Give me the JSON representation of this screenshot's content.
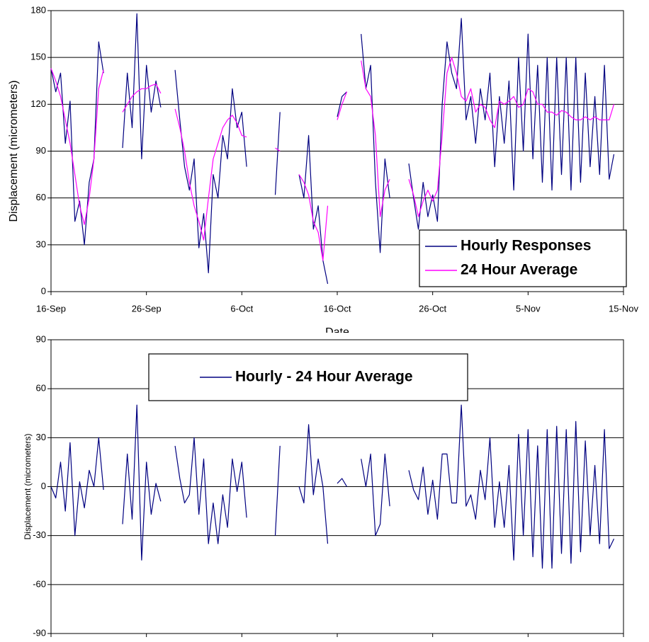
{
  "chart_data": [
    {
      "type": "line",
      "xlabel": "Date",
      "ylabel": "Displacement (micrometers)",
      "legend": "lower right",
      "grid": true,
      "xlim": [
        0,
        60
      ],
      "xticks": [
        {
          "value": 0,
          "label": "16-Sep"
        },
        {
          "value": 10,
          "label": "26-Sep"
        },
        {
          "value": 20,
          "label": "6-Oct"
        },
        {
          "value": 30,
          "label": "16-Oct"
        },
        {
          "value": 40,
          "label": "26-Oct"
        },
        {
          "value": 50,
          "label": "5-Nov"
        },
        {
          "value": 60,
          "label": "15-Nov"
        }
      ],
      "ylim": [
        0,
        180
      ],
      "yticks": [
        0,
        30,
        60,
        90,
        120,
        150,
        180
      ],
      "x": [
        0,
        0.5,
        1,
        1.5,
        2,
        2.5,
        3,
        3.5,
        4,
        4.5,
        5,
        5.5,
        6,
        6.5,
        7,
        7.5,
        8,
        8.5,
        9,
        9.5,
        10,
        10.5,
        11,
        11.5,
        12,
        12.5,
        13,
        13.5,
        14,
        14.5,
        15,
        15.5,
        16,
        16.5,
        17,
        17.5,
        18,
        18.5,
        19,
        19.5,
        20,
        20.5,
        21,
        21.5,
        22,
        22.5,
        23,
        23.5,
        24,
        24.5,
        25,
        25.5,
        26,
        26.5,
        27,
        27.5,
        28,
        28.5,
        29,
        29.5,
        30,
        30.5,
        31,
        31.5,
        32,
        32.5,
        33,
        33.5,
        34,
        34.5,
        35,
        35.5,
        36,
        36.5,
        37,
        37.5,
        38,
        38.5,
        39,
        39.5,
        40,
        40.5,
        41,
        41.5,
        42,
        42.5,
        43,
        43.5,
        44,
        44.5,
        45,
        45.5,
        46,
        46.5,
        47,
        47.5,
        48,
        48.5,
        49,
        49.5,
        50,
        50.5,
        51,
        51.5,
        52,
        52.5,
        53,
        53.5,
        54,
        54.5,
        55,
        55.5,
        56,
        56.5,
        57,
        57.5,
        58,
        58.5,
        59
      ],
      "series": [
        {
          "name": "Hourly Responses",
          "color": "#000080",
          "values": [
            143,
            128,
            140,
            95,
            122,
            45,
            58,
            30,
            70,
            85,
            160,
            140,
            null,
            null,
            null,
            92,
            140,
            105,
            178,
            85,
            145,
            115,
            135,
            118,
            null,
            null,
            142,
            110,
            80,
            65,
            85,
            28,
            50,
            12,
            75,
            60,
            100,
            85,
            130,
            105,
            115,
            80,
            null,
            null,
            null,
            null,
            null,
            62,
            115,
            null,
            null,
            null,
            75,
            60,
            100,
            40,
            55,
            20,
            5,
            null,
            112,
            125,
            128,
            null,
            null,
            165,
            130,
            145,
            70,
            25,
            85,
            60,
            null,
            null,
            null,
            82,
            60,
            40,
            70,
            48,
            62,
            45,
            120,
            160,
            140,
            130,
            175,
            110,
            125,
            95,
            130,
            110,
            140,
            80,
            125,
            95,
            135,
            65,
            150,
            90,
            165,
            85,
            145,
            70,
            150,
            65,
            150,
            75,
            150,
            65,
            150,
            70,
            140,
            80,
            125,
            75,
            145,
            72,
            88
          ]
        },
        {
          "name": "24 Hour Average",
          "color": "#ff00ff",
          "values": [
            143,
            135,
            125,
            110,
            95,
            75,
            55,
            43,
            60,
            85,
            130,
            142,
            null,
            null,
            null,
            115,
            120,
            125,
            128,
            130,
            130,
            132,
            133,
            127,
            null,
            null,
            117,
            105,
            90,
            70,
            55,
            45,
            33,
            60,
            85,
            95,
            105,
            110,
            113,
            108,
            100,
            99,
            null,
            null,
            null,
            null,
            null,
            92,
            90,
            null,
            null,
            null,
            75,
            70,
            62,
            45,
            38,
            20,
            55,
            null,
            110,
            120,
            128,
            null,
            null,
            148,
            130,
            125,
            100,
            48,
            65,
            72,
            null,
            null,
            null,
            72,
            62,
            48,
            58,
            65,
            58,
            65,
            100,
            140,
            150,
            140,
            125,
            122,
            130,
            115,
            120,
            118,
            110,
            105,
            122,
            120,
            122,
            125,
            118,
            120,
            130,
            128,
            120,
            120,
            115,
            115,
            113,
            116,
            115,
            112,
            110,
            110,
            112,
            110,
            112,
            110,
            110,
            110,
            120
          ]
        }
      ]
    },
    {
      "type": "line",
      "ylabel": "Displacement (micrometers)",
      "legend": "upper center",
      "grid": true,
      "xlim": [
        0,
        60
      ],
      "xticks": [
        0,
        10,
        20,
        30,
        40,
        50,
        60
      ],
      "ylim": [
        -90,
        90
      ],
      "yticks": [
        -90,
        -60,
        -30,
        0,
        30,
        60,
        90
      ],
      "x": [
        0,
        0.5,
        1,
        1.5,
        2,
        2.5,
        3,
        3.5,
        4,
        4.5,
        5,
        5.5,
        6,
        6.5,
        7,
        7.5,
        8,
        8.5,
        9,
        9.5,
        10,
        10.5,
        11,
        11.5,
        12,
        12.5,
        13,
        13.5,
        14,
        14.5,
        15,
        15.5,
        16,
        16.5,
        17,
        17.5,
        18,
        18.5,
        19,
        19.5,
        20,
        20.5,
        21,
        21.5,
        22,
        22.5,
        23,
        23.5,
        24,
        24.5,
        25,
        25.5,
        26,
        26.5,
        27,
        27.5,
        28,
        28.5,
        29,
        29.5,
        30,
        30.5,
        31,
        31.5,
        32,
        32.5,
        33,
        33.5,
        34,
        34.5,
        35,
        35.5,
        36,
        36.5,
        37,
        37.5,
        38,
        38.5,
        39,
        39.5,
        40,
        40.5,
        41,
        41.5,
        42,
        42.5,
        43,
        43.5,
        44,
        44.5,
        45,
        45.5,
        46,
        46.5,
        47,
        47.5,
        48,
        48.5,
        49,
        49.5,
        50,
        50.5,
        51,
        51.5,
        52,
        52.5,
        53,
        53.5,
        54,
        54.5,
        55,
        55.5,
        56,
        56.5,
        57,
        57.5,
        58,
        58.5,
        59
      ],
      "series": [
        {
          "name": "Hourly - 24 Hour Average",
          "color": "#000080",
          "values": [
            0,
            -7,
            15,
            -15,
            27,
            -30,
            3,
            -13,
            10,
            0,
            30,
            -2,
            null,
            null,
            null,
            -23,
            20,
            -20,
            50,
            -45,
            15,
            -17,
            2,
            -9,
            null,
            null,
            25,
            5,
            -10,
            -5,
            30,
            -17,
            17,
            -35,
            -10,
            -35,
            -5,
            -25,
            17,
            -3,
            15,
            -19,
            null,
            null,
            null,
            null,
            null,
            -30,
            25,
            null,
            null,
            null,
            0,
            -10,
            38,
            -5,
            17,
            0,
            -35,
            null,
            2,
            5,
            0,
            null,
            null,
            17,
            0,
            20,
            -30,
            -23,
            20,
            -12,
            null,
            null,
            null,
            10,
            -2,
            -8,
            12,
            -17,
            4,
            -20,
            20,
            20,
            -10,
            -10,
            50,
            -12,
            -5,
            -20,
            10,
            -8,
            30,
            -25,
            3,
            -25,
            13,
            -45,
            32,
            -30,
            35,
            -43,
            25,
            -50,
            35,
            -50,
            37,
            -41,
            35,
            -47,
            40,
            -40,
            28,
            -30,
            13,
            -35,
            35,
            -38,
            -32
          ]
        }
      ]
    }
  ]
}
